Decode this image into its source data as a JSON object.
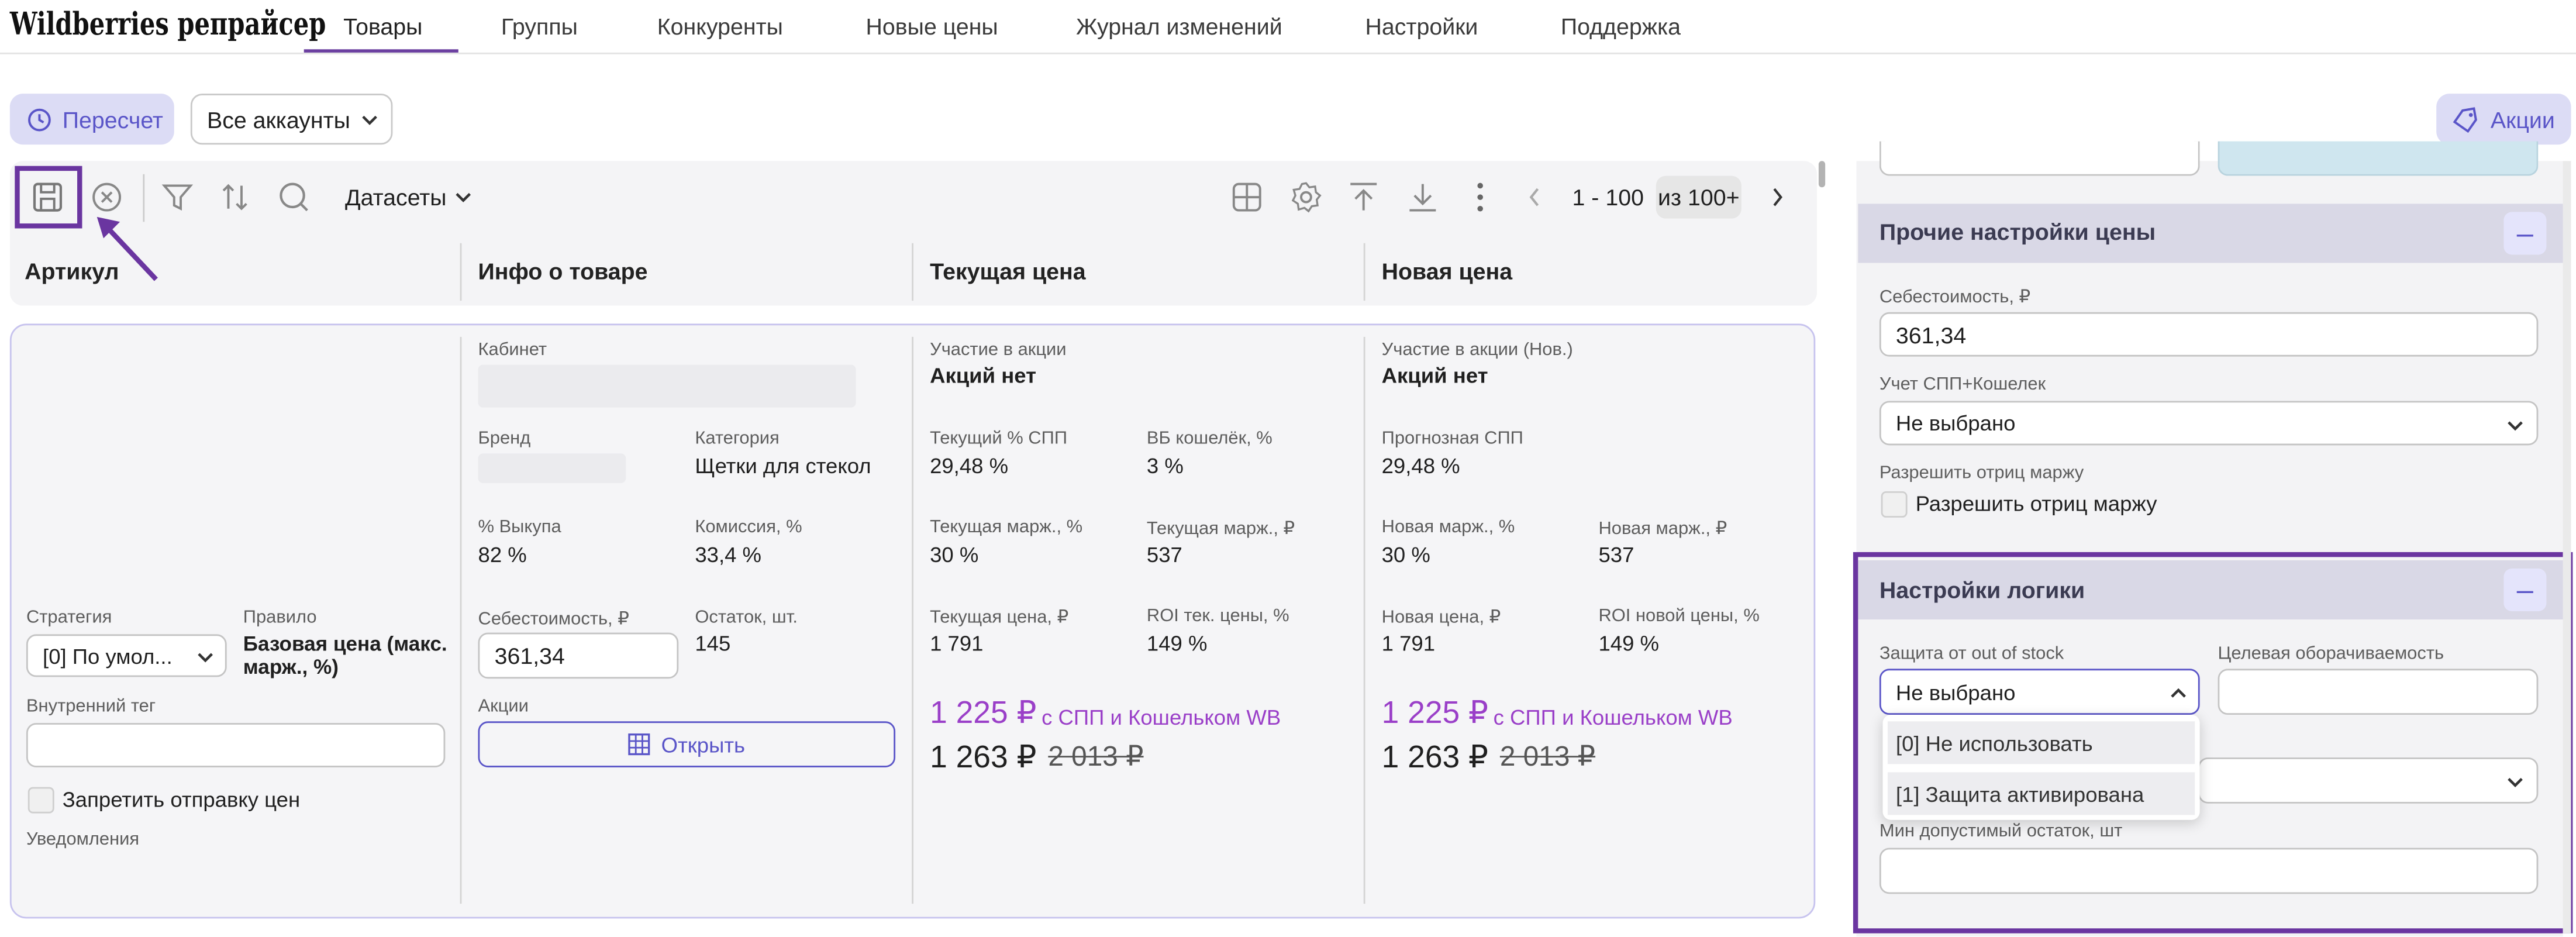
{
  "app": {
    "brand": "Wildberries репрайсер"
  },
  "nav": {
    "tabs": [
      "Товары",
      "Группы",
      "Конкуренты",
      "Новые цены",
      "Журнал изменений",
      "Настройки",
      "Поддержка"
    ]
  },
  "toolbar": {
    "recalc_label": "Пересчет",
    "accounts_value": "Все аккаунты",
    "promo_label": "Акции",
    "datasets_label": "Датасеты",
    "pager_range": "1 - 100",
    "pager_total": "из 100+"
  },
  "grid": {
    "columns": [
      "Артикул",
      "Инфо о товаре",
      "Текущая цена",
      "Новая цена"
    ]
  },
  "row": {
    "strategy_label": "Стратегия",
    "strategy_value": "[0] По умол...",
    "rule_label": "Правило",
    "rule_value_1": "Базовая цена (макс.",
    "rule_value_2": "марж., %)",
    "tag_label": "Внутренний тег",
    "tag_value": "",
    "forbid_label": "Запретить отправку цен",
    "notifications_label": "Уведомления",
    "cabinet_label": "Кабинет",
    "brand_label": "Бренд",
    "category_label": "Категория",
    "category_value": "Щетки для стекол",
    "buyout_label": "% Выкупа",
    "buyout_value": "82 %",
    "commission_label": "Комиссия, %",
    "commission_value": "33,4 %",
    "cost_label": "Себестоимость, ₽",
    "cost_value": "361,34",
    "stock_label": "Остаток, шт.",
    "stock_value": "145",
    "promos_label": "Акции",
    "open_label": "Открыть",
    "cur": {
      "promo_label": "Участие в акции",
      "promo_value": "Акций нет",
      "spp_label": "Текущий % СПП",
      "spp_value": "29,48 %",
      "wallet_label": "ВБ кошелёк, %",
      "wallet_value": "3 %",
      "margin_pct_label": "Текущая марж., %",
      "margin_pct_value": "30 %",
      "margin_rub_label": "Текущая марж., ₽",
      "margin_rub_value": "537",
      "price_label": "Текущая цена, ₽",
      "price_value": "1 791",
      "roi_label": "ROI тек. цены, %",
      "roi_value": "149 %",
      "spp_price": "1 225 ₽",
      "spp_price_note": "с СПП и Кошельком WB",
      "final_price": "1 263 ₽",
      "old_price": "2 013 ₽"
    },
    "new": {
      "promo_label": "Участие в акции (Нов.)",
      "promo_value": "Акций нет",
      "spp_label": "Прогнозная СПП",
      "spp_value": "29,48 %",
      "margin_pct_label": "Новая марж., %",
      "margin_pct_value": "30 %",
      "margin_rub_label": "Новая марж., ₽",
      "margin_rub_value": "537",
      "price_label": "Новая цена, ₽",
      "price_value": "1 791",
      "roi_label": "ROI новой цены, %",
      "roi_value": "149 %",
      "spp_price": "1 225 ₽",
      "spp_price_note": "с СПП и Кошельком WB",
      "final_price": "1 263 ₽",
      "old_price": "2 013 ₽"
    }
  },
  "right_panel": {
    "other": {
      "title": "Прочие настройки цены",
      "cost_label": "Себестоимость, ₽",
      "cost_value": "361,34",
      "spp_wallet_label": "Учет СПП+Кошелек",
      "spp_wallet_value": "Не выбрано",
      "neg_margin_label": "Разрешить отриц маржу",
      "neg_margin_check_label": "Разрешить отриц маржу"
    },
    "logic": {
      "title": "Настройки логики",
      "oos_label": "Защита от out of stock",
      "oos_value": "Не выбрано",
      "turnover_label": "Целевая оборачиваемость",
      "turnover_value": "",
      "options": [
        "[0] Не использовать",
        "[1] Защита активирована"
      ],
      "min_stock_label": "Мин допустимый остаток, шт",
      "min_stock_value": ""
    }
  },
  "colors": {
    "accent": "#5a55c8",
    "highlight": "#6a35a0",
    "price_purple": "#9a3fc8"
  }
}
